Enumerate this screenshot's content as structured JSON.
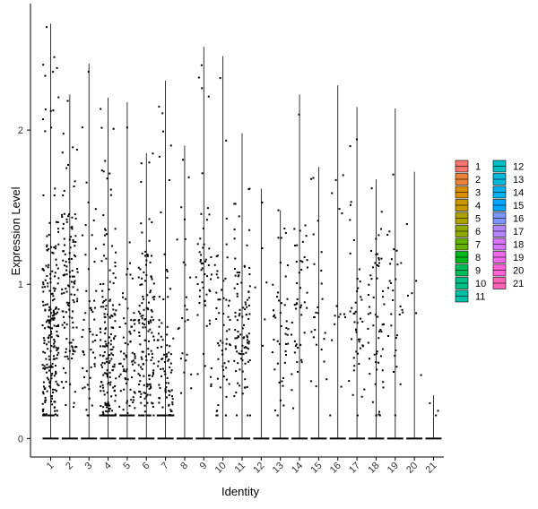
{
  "chart_data": {
    "type": "violin-jitter",
    "xlabel": "Identity",
    "ylabel": "Expression Level",
    "ylim": [
      -0.12,
      2.82
    ],
    "yticks": [
      0,
      1,
      2
    ],
    "categories": [
      "1",
      "2",
      "3",
      "4",
      "5",
      "6",
      "7",
      "8",
      "9",
      "10",
      "11",
      "12",
      "13",
      "14",
      "15",
      "16",
      "17",
      "18",
      "19",
      "20",
      "21"
    ],
    "max_values": [
      2.69,
      2.23,
      2.43,
      2.21,
      2.18,
      1.85,
      2.32,
      1.9,
      2.54,
      2.48,
      1.98,
      1.62,
      1.48,
      2.23,
      1.76,
      2.29,
      2.15,
      1.68,
      2.14,
      1.73,
      0.28
    ],
    "point_density": [
      240,
      130,
      55,
      200,
      95,
      150,
      110,
      25,
      55,
      60,
      100,
      6,
      45,
      45,
      25,
      15,
      45,
      60,
      30,
      6,
      2
    ],
    "point_center": [
      0.6,
      0.9,
      0.8,
      0.45,
      0.4,
      0.6,
      0.35,
      0.8,
      0.9,
      0.7,
      0.75,
      1.1,
      0.75,
      0.9,
      0.9,
      0.9,
      0.8,
      0.75,
      0.7,
      0.8,
      0.2
    ],
    "legend": {
      "position": "right",
      "entries": [
        "1",
        "2",
        "3",
        "4",
        "5",
        "6",
        "7",
        "8",
        "9",
        "10",
        "11",
        "12",
        "13",
        "14",
        "15",
        "16",
        "17",
        "18",
        "19",
        "20",
        "21"
      ],
      "colors": [
        "#F8766D",
        "#EC8239",
        "#DB8E00",
        "#C79800",
        "#AEA200",
        "#8FAA00",
        "#64B200",
        "#00B81B",
        "#00BD5C",
        "#00C085",
        "#00C1A7",
        "#00BFC4",
        "#00BADE",
        "#00B2F3",
        "#00A6FF",
        "#7C96FF",
        "#B385FF",
        "#D874FD",
        "#EF67EB",
        "#FD61D3",
        "#FF63B6"
      ]
    },
    "grid": false
  }
}
